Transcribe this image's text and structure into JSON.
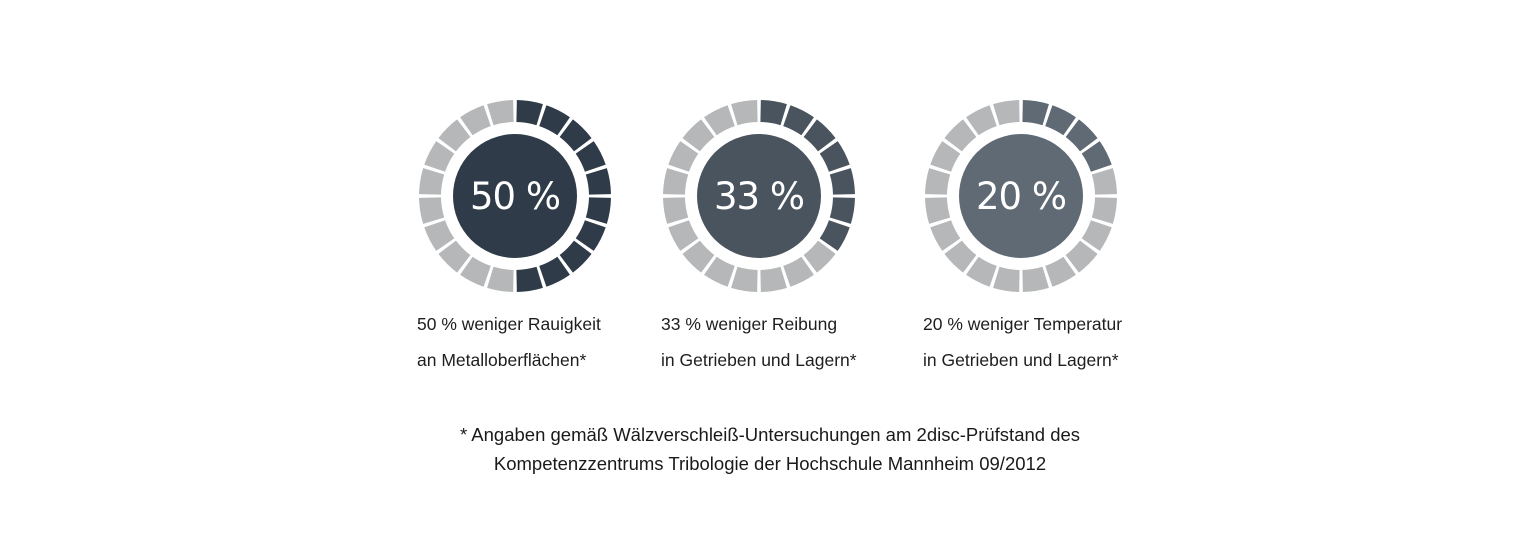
{
  "colors": {
    "inactive": "#b5b7b9",
    "background": "#ffffff"
  },
  "chart_data": {
    "type": "radial-gauge",
    "segments_per_ring": 20,
    "stats": [
      {
        "label": "50 %",
        "value": 50,
        "color": "#2f3b48",
        "caption_line1": "50 % weniger Rauigkeit",
        "caption_line2": "an Metalloberflächen*"
      },
      {
        "label": "33 %",
        "value": 33,
        "color": "#4a545e",
        "caption_line1": "33 % weniger Reibung",
        "caption_line2": "in Getrieben und Lagern*"
      },
      {
        "label": "20 %",
        "value": 20,
        "color": "#5f6a74",
        "caption_line1": "20 % weniger Temperatur",
        "caption_line2": "in Getrieben und Lagern*"
      }
    ]
  },
  "footnote": {
    "line1": "* Angaben gemäß Wälzverschleiß-Untersuchungen am 2disc-Prüfstand des",
    "line2": "Kompetenzzentrums Tribologie der Hochschule Mannheim 09/2012"
  }
}
